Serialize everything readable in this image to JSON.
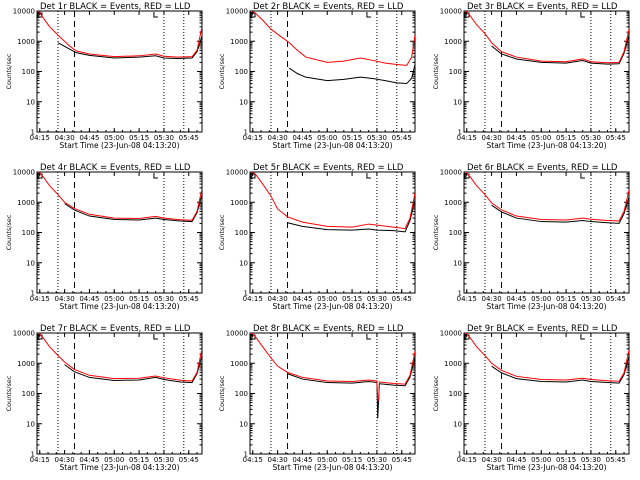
{
  "figure": {
    "time_range": {
      "start": "04:13:20",
      "end": "05:53"
    },
    "event_lines": {
      "dotted": [
        "04:26",
        "05:30",
        "05:42"
      ],
      "dashed": "04:36"
    },
    "time_ticks": [
      {
        "t": "04:15",
        "label": "04:15"
      },
      {
        "t": "04:30",
        "label": "04:30"
      },
      {
        "t": "04:45",
        "label": "04:45"
      },
      {
        "t": "05:00",
        "label": "05:00"
      },
      {
        "t": "05:15",
        "label": "05:15"
      },
      {
        "t": "05:30",
        "label": "05:30"
      },
      {
        "t": "05:45",
        "label": "05:45"
      }
    ],
    "y_ticks": [
      {
        "v": 1,
        "label": "1"
      },
      {
        "v": 10,
        "label": "10"
      },
      {
        "v": 100,
        "label": "100"
      },
      {
        "v": 1000,
        "label": "1000"
      },
      {
        "v": 10000,
        "label": "10000"
      }
    ],
    "colors": {
      "events": "#000000",
      "lld": "#ff0000"
    }
  },
  "chart_data": [
    {
      "type": "line",
      "title": "Det 1r BLACK = Events, RED = LLD",
      "xlabel": "Start Time (23-Jun-08 04:13:20)",
      "ylabel": "Counts/sec",
      "yscale": "log",
      "ylim": [
        1,
        10000
      ],
      "series": [
        {
          "name": "Events",
          "color": "#000000",
          "x": [
            "04:26",
            "04:33",
            "04:37",
            "04:45",
            "05:00",
            "05:15",
            "05:25",
            "05:30",
            "05:38",
            "05:47",
            "05:50",
            "05:53"
          ],
          "values": [
            900,
            550,
            420,
            340,
            280,
            300,
            330,
            280,
            270,
            280,
            450,
            1500
          ]
        },
        {
          "name": "LLD",
          "color": "#ff0000",
          "x": [
            "04:13:20",
            "04:17",
            "04:21",
            "04:26",
            "04:33",
            "04:37",
            "04:45",
            "05:00",
            "05:15",
            "05:25",
            "05:30",
            "05:38",
            "05:47",
            "05:50",
            "05:53"
          ],
          "values": [
            12000,
            6000,
            3000,
            1600,
            700,
            480,
            380,
            310,
            330,
            380,
            320,
            300,
            310,
            500,
            3000
          ]
        }
      ]
    },
    {
      "type": "line",
      "title": "Det 2r BLACK = Events, RED = LLD",
      "xlabel": "Start Time (23-Jun-08 04:13:20)",
      "ylabel": "Counts/sec",
      "yscale": "log",
      "ylim": [
        1,
        10000
      ],
      "series": [
        {
          "name": "Events",
          "color": "#000000",
          "x": [
            "04:37",
            "04:42",
            "04:47",
            "05:00",
            "05:10",
            "05:20",
            "05:28",
            "05:35",
            "05:42",
            "05:48",
            "05:51",
            "05:53"
          ],
          "values": [
            130,
            85,
            65,
            50,
            55,
            65,
            58,
            50,
            42,
            40,
            60,
            170
          ]
        },
        {
          "name": "LLD",
          "color": "#ff0000",
          "x": [
            "04:13:20",
            "04:17",
            "04:21",
            "04:26",
            "04:33",
            "04:37",
            "04:42",
            "04:47",
            "05:00",
            "05:10",
            "05:20",
            "05:28",
            "05:35",
            "05:42",
            "05:48",
            "05:51",
            "05:53"
          ],
          "values": [
            12000,
            8000,
            5000,
            2500,
            1300,
            900,
            500,
            300,
            200,
            220,
            280,
            230,
            190,
            170,
            160,
            300,
            1600
          ]
        }
      ]
    },
    {
      "type": "line",
      "title": "Det 3r BLACK = Events, RED = LLD",
      "xlabel": "Start Time (23-Jun-08 04:13:20)",
      "ylabel": "Counts/sec",
      "yscale": "log",
      "ylim": [
        1,
        10000
      ],
      "series": [
        {
          "name": "Events",
          "color": "#000000",
          "x": [
            "04:30",
            "04:36",
            "04:45",
            "05:00",
            "05:15",
            "05:25",
            "05:30",
            "05:40",
            "05:47",
            "05:50",
            "05:53"
          ],
          "values": [
            700,
            380,
            260,
            200,
            190,
            230,
            190,
            175,
            180,
            400,
            1600
          ]
        },
        {
          "name": "LLD",
          "color": "#ff0000",
          "x": [
            "04:13:20",
            "04:17",
            "04:21",
            "04:26",
            "04:30",
            "04:36",
            "04:45",
            "05:00",
            "05:15",
            "05:25",
            "05:30",
            "05:40",
            "05:47",
            "05:50",
            "05:53"
          ],
          "values": [
            12000,
            7000,
            3500,
            1800,
            900,
            450,
            300,
            220,
            210,
            260,
            210,
            195,
            200,
            450,
            2500
          ]
        }
      ]
    },
    {
      "type": "line",
      "title": "Det 4r BLACK = Events, RED = LLD",
      "xlabel": "Start Time (23-Jun-08 04:13:20)",
      "ylabel": "Counts/sec",
      "yscale": "log",
      "ylim": [
        1,
        10000
      ],
      "series": [
        {
          "name": "Events",
          "color": "#000000",
          "x": [
            "04:30",
            "04:36",
            "04:45",
            "05:00",
            "05:15",
            "05:25",
            "05:30",
            "05:40",
            "05:47",
            "05:50",
            "05:53"
          ],
          "values": [
            900,
            550,
            350,
            270,
            260,
            300,
            270,
            240,
            230,
            450,
            1800
          ]
        },
        {
          "name": "LLD",
          "color": "#ff0000",
          "x": [
            "04:13:20",
            "04:17",
            "04:21",
            "04:26",
            "04:30",
            "04:36",
            "04:45",
            "05:00",
            "05:15",
            "05:25",
            "05:30",
            "05:40",
            "05:47",
            "05:50",
            "05:53"
          ],
          "values": [
            12000,
            7000,
            3500,
            1800,
            1000,
            620,
            400,
            300,
            290,
            340,
            300,
            265,
            255,
            500,
            2800
          ]
        }
      ]
    },
    {
      "type": "line",
      "title": "Det 5r BLACK = Events, RED = LLD",
      "xlabel": "Start Time (23-Jun-08 04:13:20)",
      "ylabel": "Counts/sec",
      "yscale": "log",
      "ylim": [
        1,
        10000
      ],
      "series": [
        {
          "name": "Events",
          "color": "#000000",
          "x": [
            "04:36",
            "04:45",
            "05:00",
            "05:15",
            "05:25",
            "05:30",
            "05:40",
            "05:47",
            "05:50",
            "05:53"
          ],
          "values": [
            210,
            160,
            125,
            120,
            130,
            120,
            115,
            105,
            250,
            1200
          ]
        },
        {
          "name": "LLD",
          "color": "#ff0000",
          "x": [
            "04:13:20",
            "04:17",
            "04:21",
            "04:26",
            "04:30",
            "04:36",
            "04:45",
            "05:00",
            "05:15",
            "05:25",
            "05:30",
            "05:40",
            "05:47",
            "05:50",
            "05:53"
          ],
          "values": [
            12000,
            8000,
            4000,
            1600,
            600,
            330,
            220,
            160,
            150,
            190,
            175,
            150,
            135,
            300,
            2000
          ]
        }
      ]
    },
    {
      "type": "line",
      "title": "Det 6r BLACK = Events, RED = LLD",
      "xlabel": "Start Time (23-Jun-08 04:13:20)",
      "ylabel": "Counts/sec",
      "yscale": "log",
      "ylim": [
        1,
        10000
      ],
      "series": [
        {
          "name": "Events",
          "color": "#000000",
          "x": [
            "04:30",
            "04:36",
            "04:45",
            "05:00",
            "05:15",
            "05:25",
            "05:30",
            "05:40",
            "05:47",
            "05:50",
            "05:53"
          ],
          "values": [
            800,
            480,
            300,
            230,
            220,
            250,
            230,
            210,
            200,
            420,
            1500
          ]
        },
        {
          "name": "LLD",
          "color": "#ff0000",
          "x": [
            "04:13:20",
            "04:17",
            "04:21",
            "04:26",
            "04:30",
            "04:36",
            "04:45",
            "05:00",
            "05:15",
            "05:25",
            "05:30",
            "05:40",
            "05:47",
            "05:50",
            "05:53"
          ],
          "values": [
            12000,
            7000,
            3500,
            1800,
            950,
            560,
            350,
            270,
            260,
            300,
            275,
            250,
            240,
            500,
            2500
          ]
        }
      ]
    },
    {
      "type": "line",
      "title": "Det 7r BLACK = Events, RED = LLD",
      "xlabel": "Start Time (23-Jun-08 04:13:20)",
      "ylabel": "Counts/sec",
      "yscale": "log",
      "ylim": [
        1,
        10000
      ],
      "series": [
        {
          "name": "Events",
          "color": "#000000",
          "x": [
            "04:30",
            "04:36",
            "04:45",
            "05:00",
            "05:15",
            "05:25",
            "05:30",
            "05:40",
            "05:47",
            "05:50",
            "05:53"
          ],
          "values": [
            900,
            520,
            340,
            270,
            280,
            340,
            290,
            240,
            230,
            450,
            1800
          ]
        },
        {
          "name": "LLD",
          "color": "#ff0000",
          "x": [
            "04:13:20",
            "04:17",
            "04:21",
            "04:26",
            "04:30",
            "04:36",
            "04:45",
            "05:00",
            "05:15",
            "05:25",
            "05:30",
            "05:40",
            "05:47",
            "05:50",
            "05:53"
          ],
          "values": [
            12000,
            7000,
            3500,
            1800,
            1100,
            620,
            400,
            310,
            320,
            380,
            330,
            275,
            260,
            500,
            3000
          ]
        }
      ]
    },
    {
      "type": "line",
      "title": "Det 8r BLACK = Events, RED = LLD",
      "xlabel": "Start Time (23-Jun-08 04:13:20)",
      "ylabel": "Counts/sec",
      "yscale": "log",
      "ylim": [
        1,
        10000
      ],
      "series": [
        {
          "name": "Events",
          "color": "#000000",
          "x": [
            "04:36",
            "04:45",
            "05:00",
            "05:15",
            "05:25",
            "05:30",
            "05:30:30",
            "05:31",
            "05:31:30",
            "05:40",
            "05:47",
            "05:50",
            "05:53"
          ],
          "values": [
            450,
            300,
            230,
            220,
            250,
            230,
            15,
            60,
            210,
            190,
            180,
            350,
            1600
          ]
        },
        {
          "name": "LLD",
          "color": "#ff0000",
          "x": [
            "04:13:20",
            "04:17",
            "04:21",
            "04:26",
            "04:30",
            "04:36",
            "04:45",
            "05:00",
            "05:15",
            "05:25",
            "05:30",
            "05:30:30",
            "05:31",
            "05:31:30",
            "05:40",
            "05:47",
            "05:50",
            "05:53"
          ],
          "values": [
            12000,
            7000,
            3500,
            1500,
            800,
            500,
            340,
            260,
            250,
            280,
            260,
            60,
            60,
            240,
            215,
            205,
            400,
            2500
          ]
        }
      ]
    },
    {
      "type": "line",
      "title": "Det 9r BLACK = Events, RED = LLD",
      "xlabel": "Start Time (23-Jun-08 04:13:20)",
      "ylabel": "Counts/sec",
      "yscale": "log",
      "ylim": [
        1,
        10000
      ],
      "series": [
        {
          "name": "Events",
          "color": "#000000",
          "x": [
            "04:30",
            "04:36",
            "04:45",
            "05:00",
            "05:15",
            "05:25",
            "05:30",
            "05:40",
            "05:47",
            "05:50",
            "05:53"
          ],
          "values": [
            800,
            480,
            310,
            250,
            240,
            280,
            250,
            230,
            220,
            420,
            1700
          ]
        },
        {
          "name": "LLD",
          "color": "#ff0000",
          "x": [
            "04:13:20",
            "04:17",
            "04:21",
            "04:26",
            "04:30",
            "04:36",
            "04:45",
            "05:00",
            "05:15",
            "05:25",
            "05:30",
            "05:40",
            "05:47",
            "05:50",
            "05:53"
          ],
          "values": [
            12000,
            7000,
            3500,
            1800,
            1000,
            580,
            370,
            290,
            280,
            320,
            290,
            265,
            255,
            480,
            2700
          ]
        }
      ]
    }
  ]
}
